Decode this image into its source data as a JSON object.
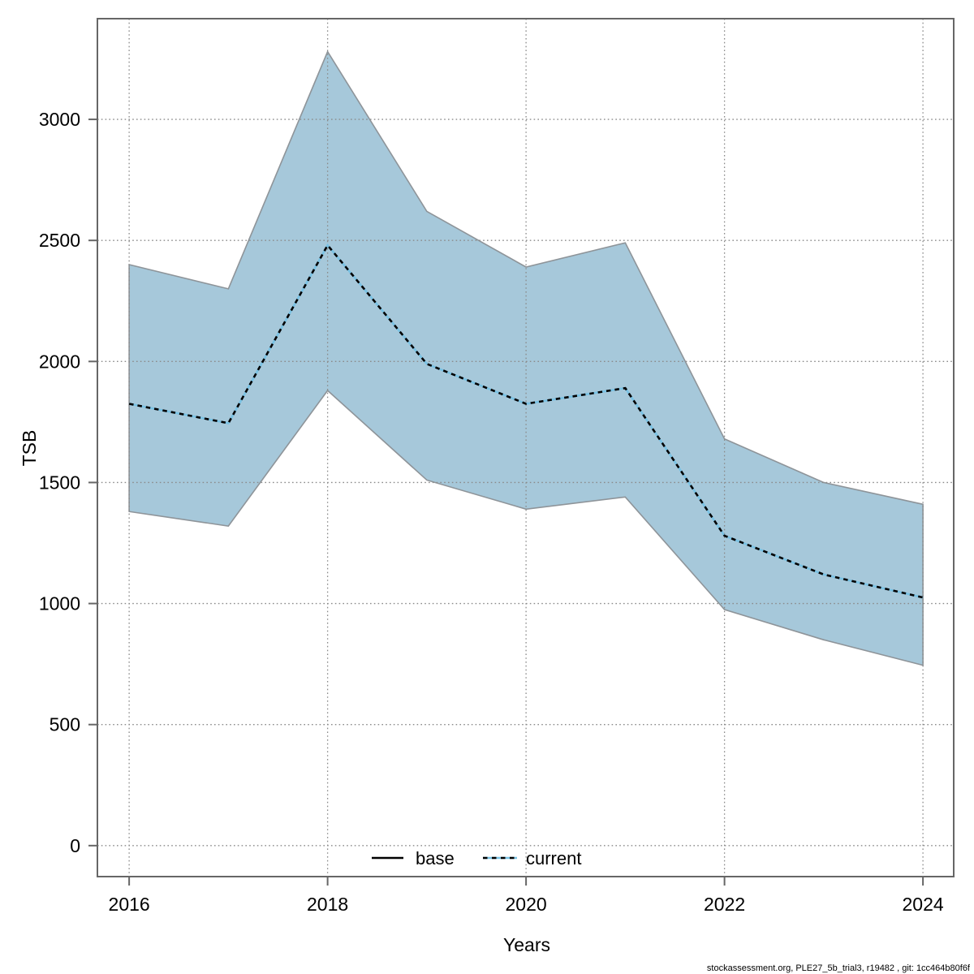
{
  "page": {
    "background": "#ffffff"
  },
  "footer": {
    "text": "stockassessment.org, PLE27_5b_trial3, r19482 , git: 1cc464b80f6f"
  },
  "colors": {
    "band_fill": "#a6c8da",
    "band_border": "#8e9499",
    "current_line_blue": "#79c2e4",
    "current_line_dash": "#000000",
    "base_line": "#000000",
    "grid": "#8a8a8a",
    "axis_box": "#666666",
    "text": "#000000"
  },
  "chart_data": {
    "type": "area",
    "title": "",
    "xlabel": "Years",
    "ylabel": "TSB",
    "x": [
      2016,
      2017,
      2018,
      2019,
      2020,
      2021,
      2022,
      2023,
      2024
    ],
    "series": [
      {
        "name": "current",
        "role": "median",
        "values": [
          1825,
          1745,
          2480,
          1990,
          1825,
          1890,
          1280,
          1120,
          1025
        ]
      },
      {
        "name": "ci-upper",
        "role": "band-upper",
        "values": [
          2400,
          2300,
          3280,
          2620,
          2390,
          2490,
          1680,
          1500,
          1410
        ]
      },
      {
        "name": "ci-lower",
        "role": "band-lower",
        "values": [
          1380,
          1320,
          1880,
          1510,
          1390,
          1440,
          975,
          850,
          745
        ]
      }
    ],
    "xticks": [
      2016,
      2018,
      2020,
      2022,
      2024
    ],
    "yticks": [
      0,
      500,
      1000,
      1500,
      2000,
      2500,
      3000
    ],
    "xlim": [
      2015.68,
      2024.31
    ],
    "ylim": [
      -128,
      3416
    ],
    "grid": "dotted",
    "legend": {
      "position": "bottom-center-inside",
      "items": [
        {
          "label": "base",
          "line": "solid",
          "color": "#000000"
        },
        {
          "label": "current",
          "line": "dotted",
          "color": "#79c2e4"
        }
      ]
    }
  }
}
